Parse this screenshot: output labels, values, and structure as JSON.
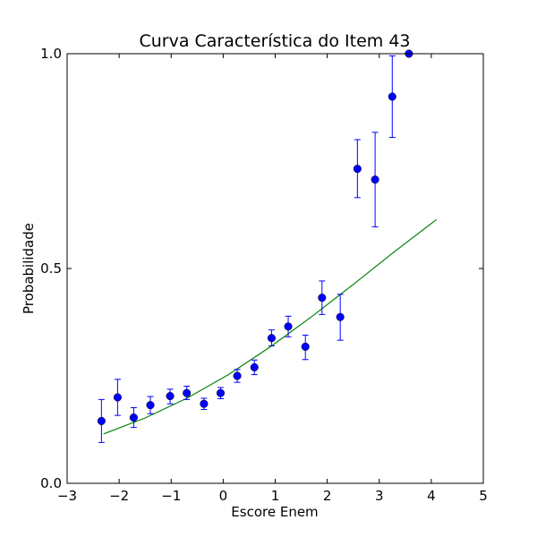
{
  "chart_data": {
    "type": "scatter",
    "title": "Curva Característica do Item 43",
    "xlabel": "Escore Enem",
    "ylabel": "Probabilidade",
    "xlim": [
      -3,
      5
    ],
    "ylim": [
      0,
      1
    ],
    "x_ticks": [
      -3,
      -2,
      -1,
      0,
      1,
      2,
      3,
      4,
      5
    ],
    "x_tick_labels": [
      "−3",
      "−2",
      "−1",
      "0",
      "1",
      "2",
      "3",
      "4",
      "5"
    ],
    "y_ticks": [
      0,
      0.5,
      1
    ],
    "y_tick_labels": [
      "0.0",
      "0.5",
      "1.0"
    ],
    "grid": false,
    "colors": {
      "points": "#0000ff",
      "curve": "#008000"
    },
    "points": [
      {
        "x": -2.34,
        "y": 0.145,
        "lo": 0.095,
        "hi": 0.195
      },
      {
        "x": -2.03,
        "y": 0.2,
        "lo": 0.158,
        "hi": 0.242
      },
      {
        "x": -1.72,
        "y": 0.153,
        "lo": 0.13,
        "hi": 0.176
      },
      {
        "x": -1.4,
        "y": 0.182,
        "lo": 0.162,
        "hi": 0.202
      },
      {
        "x": -1.02,
        "y": 0.203,
        "lo": 0.185,
        "hi": 0.219
      },
      {
        "x": -0.7,
        "y": 0.21,
        "lo": 0.195,
        "hi": 0.226
      },
      {
        "x": -0.37,
        "y": 0.185,
        "lo": 0.172,
        "hi": 0.198
      },
      {
        "x": -0.05,
        "y": 0.21,
        "lo": 0.197,
        "hi": 0.223
      },
      {
        "x": 0.27,
        "y": 0.25,
        "lo": 0.235,
        "hi": 0.265
      },
      {
        "x": 0.6,
        "y": 0.27,
        "lo": 0.253,
        "hi": 0.287
      },
      {
        "x": 0.93,
        "y": 0.338,
        "lo": 0.32,
        "hi": 0.357
      },
      {
        "x": 1.25,
        "y": 0.365,
        "lo": 0.341,
        "hi": 0.389
      },
      {
        "x": 1.58,
        "y": 0.318,
        "lo": 0.288,
        "hi": 0.345
      },
      {
        "x": 1.9,
        "y": 0.432,
        "lo": 0.393,
        "hi": 0.471
      },
      {
        "x": 2.25,
        "y": 0.387,
        "lo": 0.333,
        "hi": 0.44
      },
      {
        "x": 2.58,
        "y": 0.732,
        "lo": 0.665,
        "hi": 0.8
      },
      {
        "x": 2.92,
        "y": 0.707,
        "lo": 0.597,
        "hi": 0.817
      },
      {
        "x": 3.25,
        "y": 0.9,
        "lo": 0.805,
        "hi": 0.995
      },
      {
        "x": 3.57,
        "y": 1.0,
        "lo": 1.0,
        "hi": 1.0
      }
    ],
    "curve": {
      "x": [
        -2.3,
        -1.5,
        -0.7,
        0.1,
        0.9,
        1.7,
        2.5,
        3.3,
        4.1
      ],
      "y": [
        0.115,
        0.152,
        0.198,
        0.253,
        0.317,
        0.388,
        0.463,
        0.54,
        0.614
      ]
    }
  }
}
